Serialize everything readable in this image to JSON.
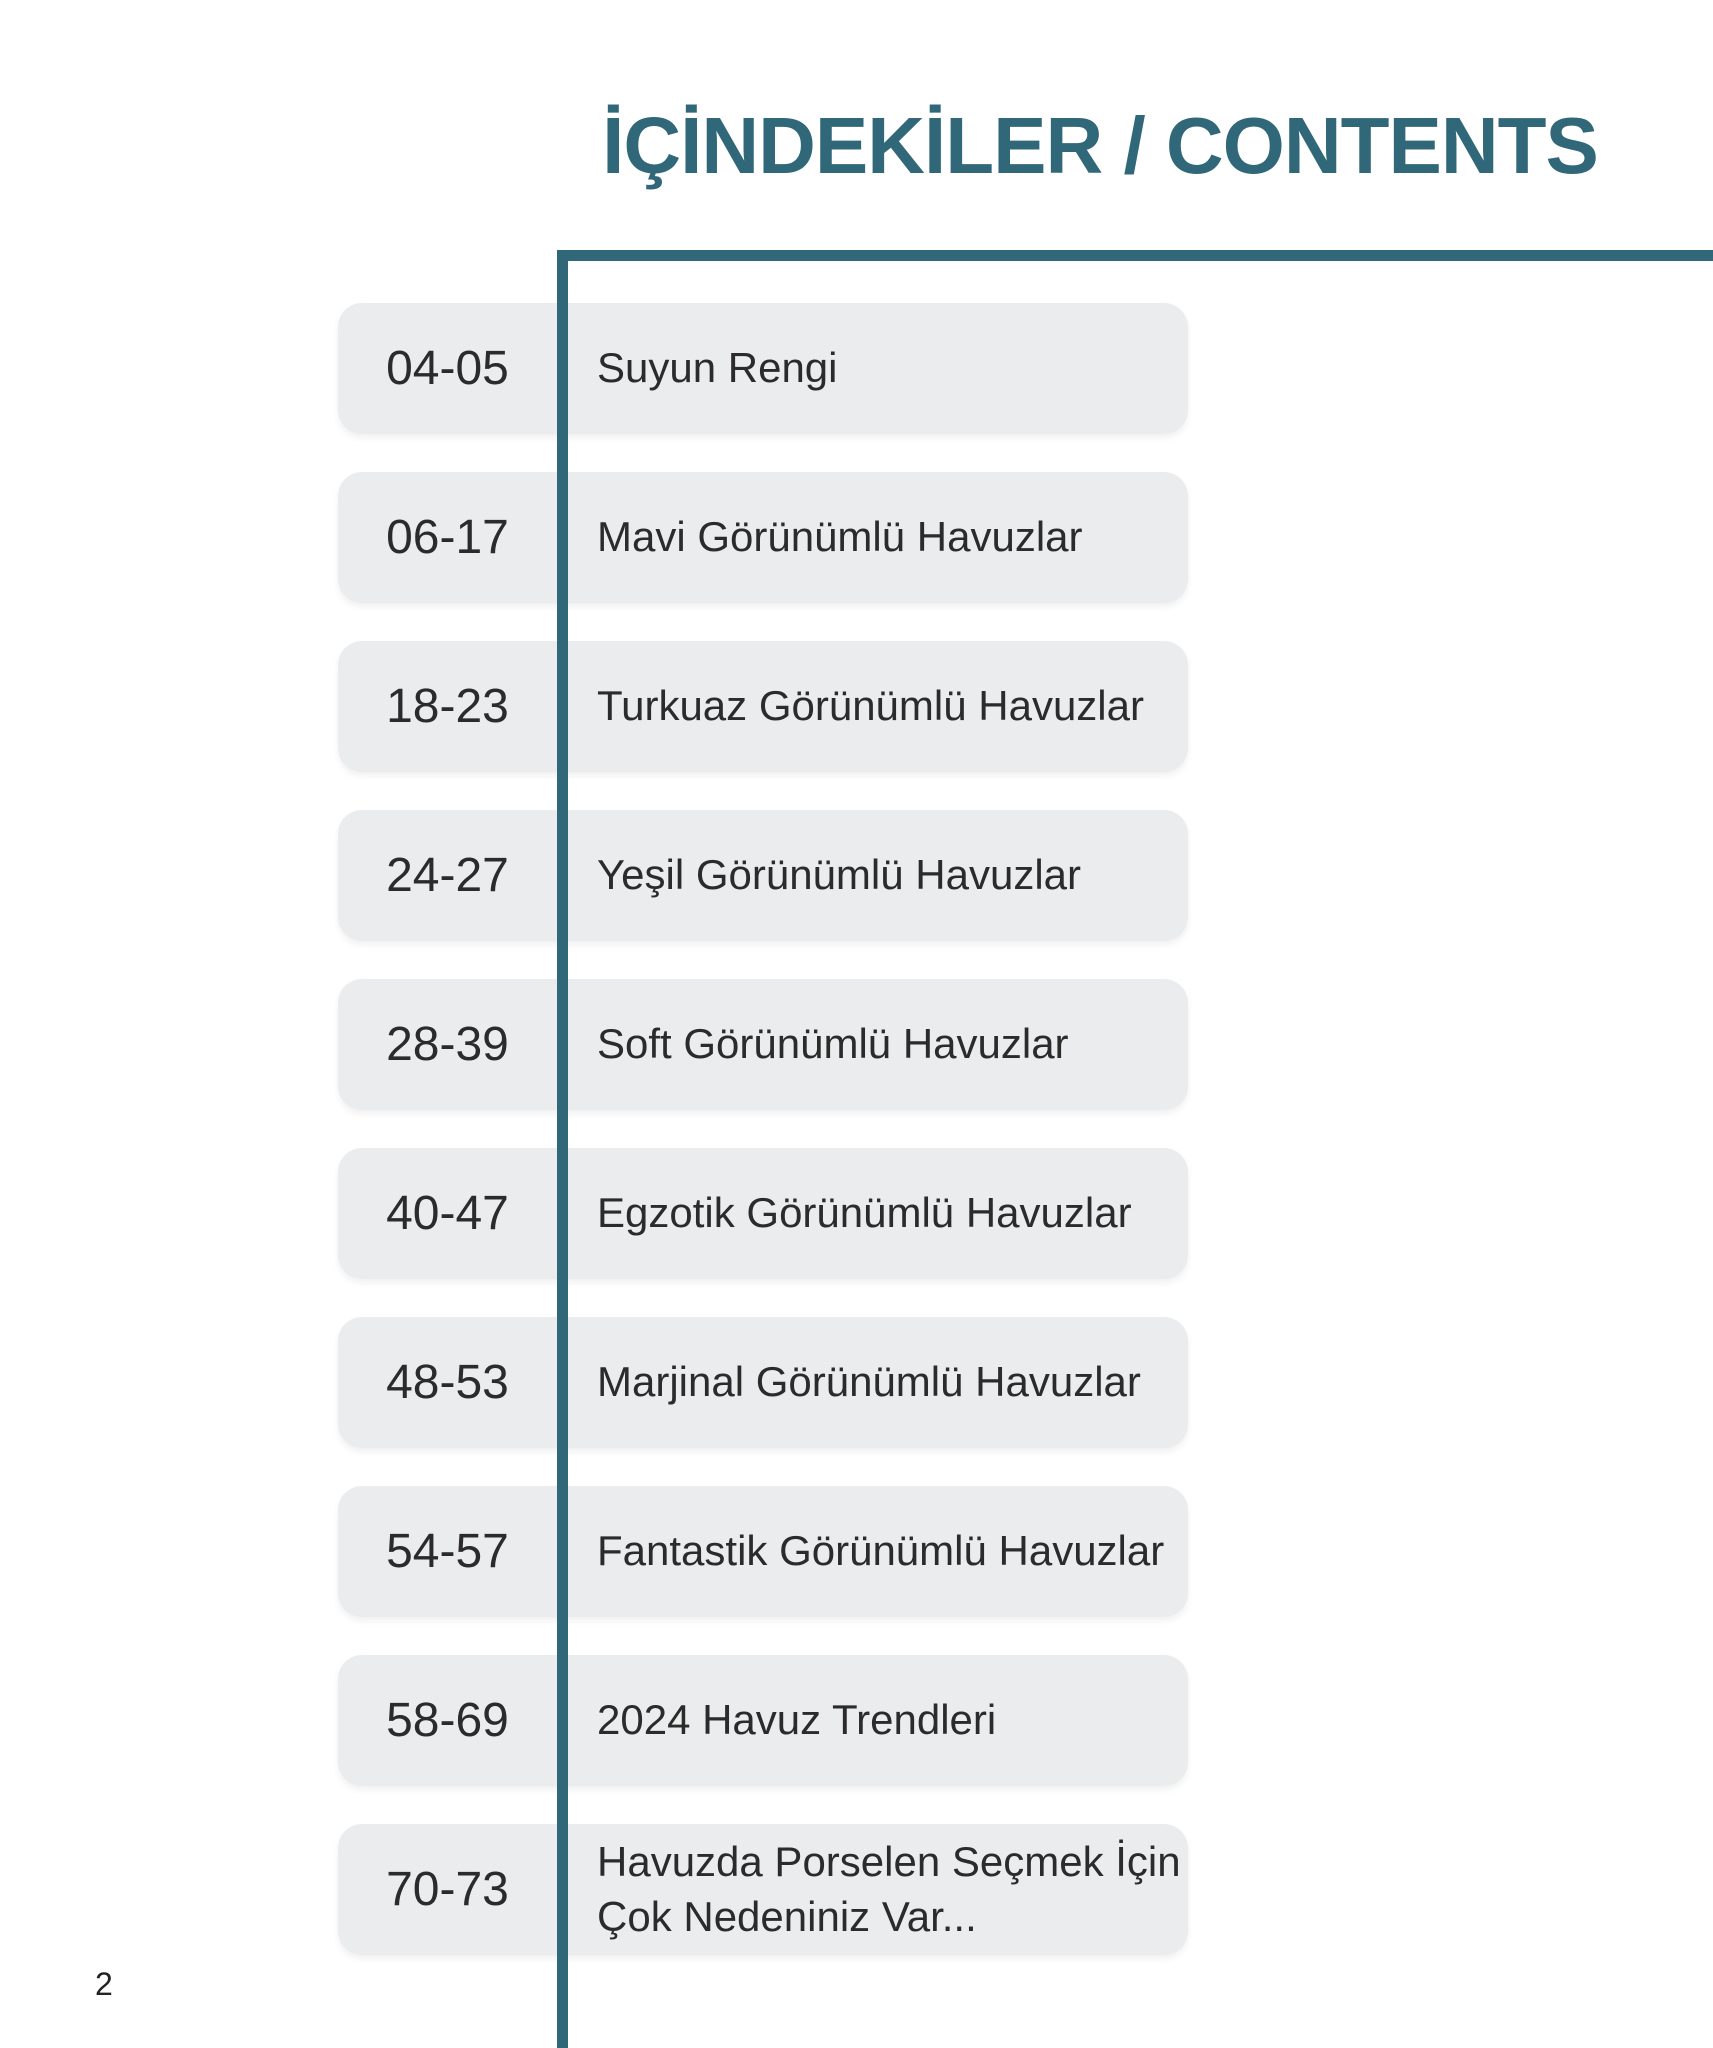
{
  "header": {
    "title": "İÇİNDEKİLER / CONTENTS"
  },
  "toc": {
    "entries": [
      {
        "pages": "04-05",
        "label": "Suyun Rengi"
      },
      {
        "pages": "06-17",
        "label": "Mavi Görünümlü Havuzlar"
      },
      {
        "pages": "18-23",
        "label": "Turkuaz Görünümlü Havuzlar"
      },
      {
        "pages": "24-27",
        "label": "Yeşil Görünümlü Havuzlar"
      },
      {
        "pages": "28-39",
        "label": "Soft Görünümlü Havuzlar"
      },
      {
        "pages": "40-47",
        "label": "Egzotik Görünümlü Havuzlar"
      },
      {
        "pages": "48-53",
        "label": "Marjinal Görünümlü Havuzlar"
      },
      {
        "pages": "54-57",
        "label": "Fantastik Görünümlü Havuzlar"
      },
      {
        "pages": "58-69",
        "label": "2024 Havuz Trendleri"
      },
      {
        "pages": "70-73",
        "label": "Havuzda Porselen Seçmek İçin Çok Nedeniniz Var..."
      }
    ]
  },
  "footer": {
    "page_number": "2"
  },
  "colors": {
    "accent_teal": "#30687A",
    "entry_background": "#EBECED",
    "entry_text": "#2B2B2B"
  }
}
